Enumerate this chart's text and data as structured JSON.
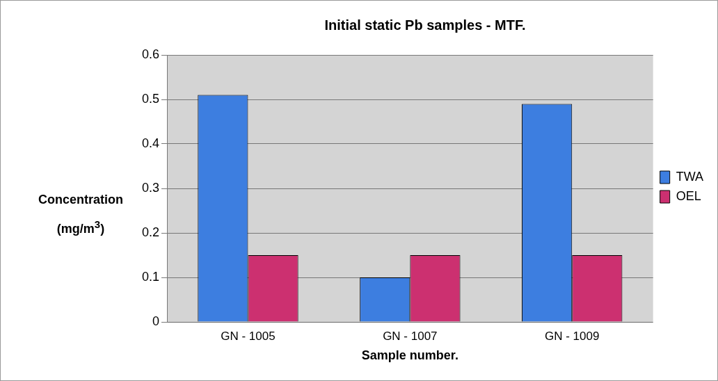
{
  "chart_data": {
    "type": "bar",
    "title": "Initial static Pb samples - MTF.",
    "xlabel": "Sample number.",
    "ylabel": "Concentration (mg/m$^{3}$)",
    "categories": [
      "GN - 1005",
      "GN - 1007",
      "GN - 1009"
    ],
    "series": [
      {
        "name": "TWA",
        "color": "#3d7ee0",
        "values": [
          0.51,
          0.1,
          0.49
        ]
      },
      {
        "name": "OEL",
        "color": "#cc3070",
        "values": [
          0.15,
          0.15,
          0.15
        ]
      }
    ],
    "ylim": [
      0,
      0.6
    ],
    "yticks": [
      0,
      0.1,
      0.2,
      0.3,
      0.4,
      0.5,
      0.6
    ],
    "grid": "y",
    "legend": "right"
  }
}
